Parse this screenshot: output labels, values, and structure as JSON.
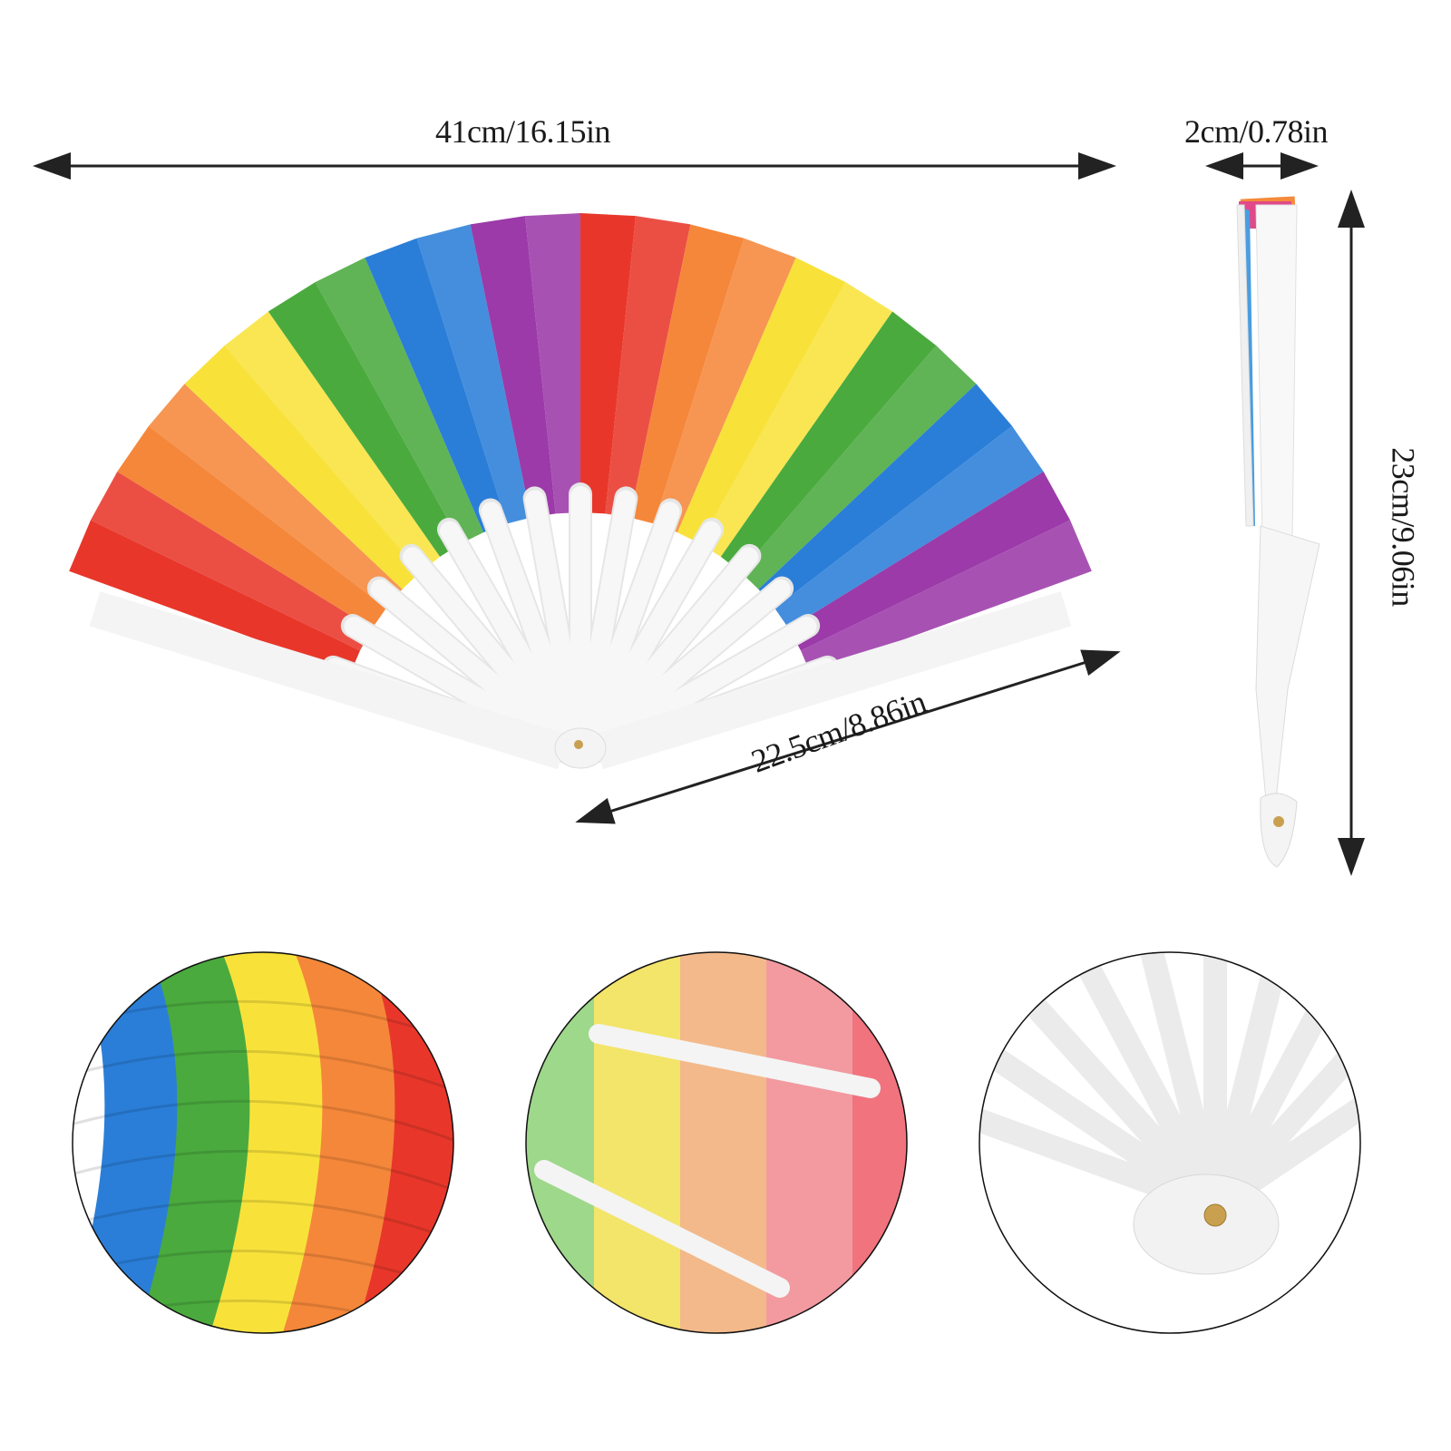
{
  "dimensions": {
    "width": "41cm/16.15in",
    "thickness": "2cm/0.78in",
    "height": "23cm/9.06in",
    "radius": "22.5cm/8.86in"
  },
  "colors": {
    "red": "#e8372a",
    "orange": "#f5873a",
    "yellow": "#f8e23a",
    "green": "#4aaa3e",
    "blue": "#2a7ed8",
    "purple": "#9b3aa8",
    "ribs": "#f7f7f7",
    "arrow": "#222222"
  }
}
